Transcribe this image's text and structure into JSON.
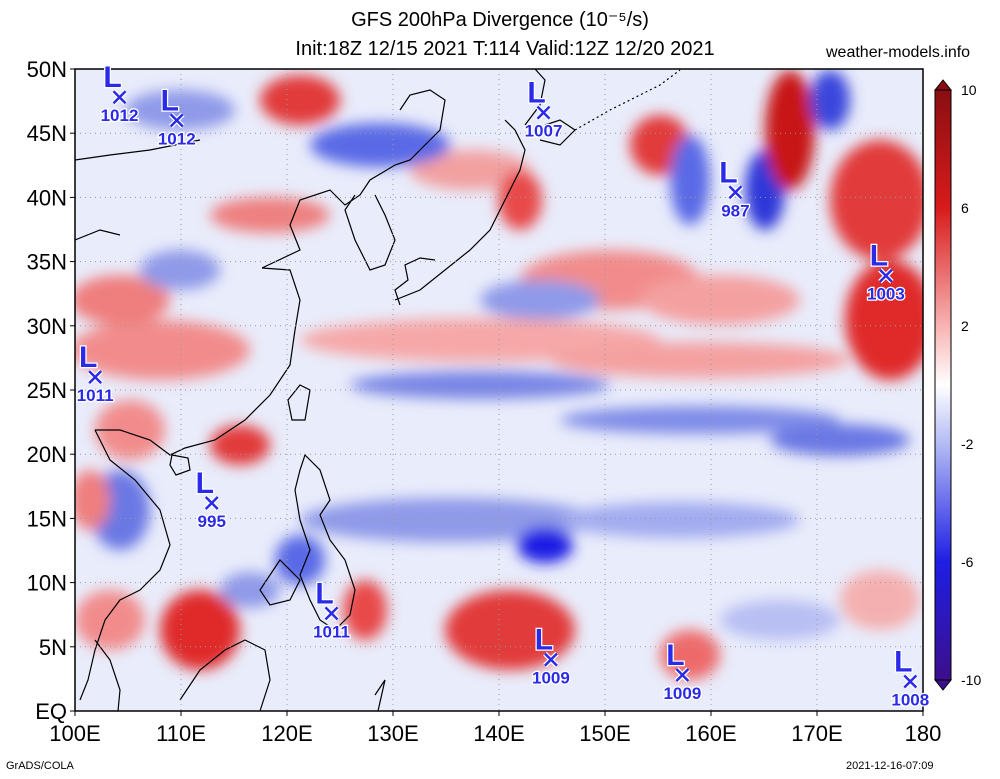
{
  "title": {
    "line1": "GFS 200hPa Divergence (10⁻⁵/s)",
    "line2": "Init:18Z 12/15 2021 T:114 Valid:12Z 12/20 2021"
  },
  "site": "weather-models.info",
  "footer": {
    "left": "GrADS/COLA",
    "right": "2021-12-16-07:09"
  },
  "map": {
    "lat_labels": [
      "50N",
      "45N",
      "40N",
      "35N",
      "30N",
      "25N",
      "20N",
      "15N",
      "10N",
      "5N",
      "EQ"
    ],
    "lat_values": [
      50,
      45,
      40,
      35,
      30,
      25,
      20,
      15,
      10,
      5,
      0
    ],
    "lon_labels": [
      "100E",
      "110E",
      "120E",
      "130E",
      "140E",
      "150E",
      "160E",
      "170E",
      "180"
    ],
    "lon_values": [
      100,
      110,
      120,
      130,
      140,
      150,
      160,
      170,
      180
    ],
    "lon_range": [
      100,
      180
    ],
    "lat_range": [
      0,
      50
    ],
    "grid": true,
    "low_pressure_centers": [
      {
        "label": "L",
        "pressure": "1012",
        "lon": 104.2,
        "lat": 47.8
      },
      {
        "label": "L",
        "pressure": "1012",
        "lon": 109.6,
        "lat": 46.0
      },
      {
        "label": "L",
        "pressure": "1007",
        "lon": 144.2,
        "lat": 46.6
      },
      {
        "label": "L",
        "pressure": "987",
        "lon": 162.3,
        "lat": 40.4
      },
      {
        "label": "L",
        "pressure": "1003",
        "lon": 176.5,
        "lat": 33.9
      },
      {
        "label": "L",
        "pressure": "1011",
        "lon": 101.9,
        "lat": 26.0
      },
      {
        "label": "L",
        "pressure": "995",
        "lon": 112.9,
        "lat": 16.2
      },
      {
        "label": "L",
        "pressure": "1011",
        "lon": 124.2,
        "lat": 7.6
      },
      {
        "label": "L",
        "pressure": "1009",
        "lon": 144.9,
        "lat": 4.0
      },
      {
        "label": "L",
        "pressure": "1009",
        "lon": 157.3,
        "lat": 2.8
      },
      {
        "label": "L",
        "pressure": "1008",
        "lon": 178.8,
        "lat": 2.3
      }
    ]
  },
  "colorbar": {
    "labels": [
      "10",
      "6",
      "2",
      "-2",
      "-6",
      "-10"
    ],
    "label_values": [
      10,
      6,
      2,
      -2,
      -6,
      -10
    ],
    "range": [
      -10,
      10
    ],
    "colors": {
      "max": "#8a0e12",
      "high": "#e81a1a",
      "mid_high": "#f7a0a0",
      "zero": "#ffffff",
      "mid_low": "#a9b2f2",
      "low": "#2a2ae8",
      "min": "#3c0f8c"
    }
  }
}
